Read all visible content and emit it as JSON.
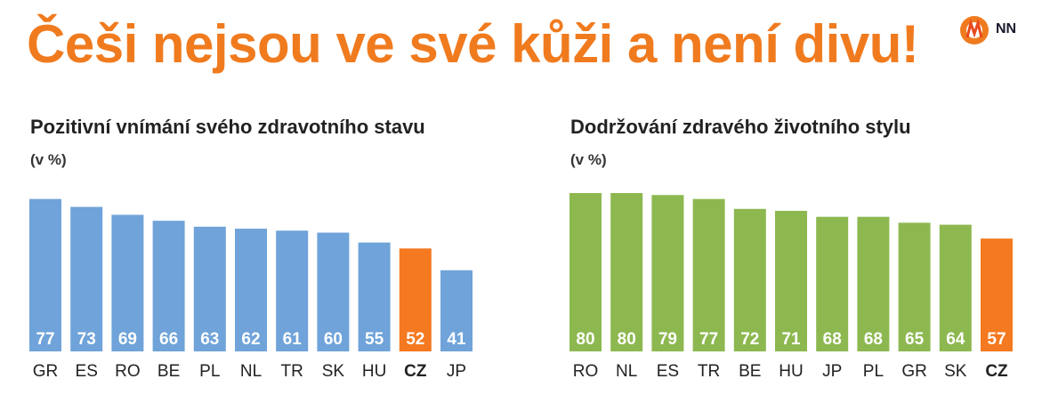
{
  "headline": "Češi nejsou ve své kůži a není divu!",
  "logo": {
    "text": "NN"
  },
  "colors": {
    "accent": "#f07b1f",
    "blue": "#6fa3d9",
    "green": "#8db850",
    "highlight": "#f47920"
  },
  "chart_data": [
    {
      "type": "bar",
      "title": "Pozitivní vnímání svého zdravotního stavu",
      "unit": "(v %)",
      "categories": [
        "GR",
        "ES",
        "RO",
        "BE",
        "PL",
        "NL",
        "TR",
        "SK",
        "HU",
        "CZ",
        "JP"
      ],
      "values": [
        77,
        73,
        69,
        66,
        63,
        62,
        61,
        60,
        55,
        52,
        41
      ],
      "highlight": "CZ",
      "ylim": [
        0,
        80
      ]
    },
    {
      "type": "bar",
      "title": "Dodržování zdravého životního stylu",
      "unit": "(v %)",
      "categories": [
        "RO",
        "NL",
        "ES",
        "TR",
        "BE",
        "HU",
        "JP",
        "PL",
        "GR",
        "SK",
        "CZ"
      ],
      "values": [
        80,
        80,
        79,
        77,
        72,
        71,
        68,
        68,
        65,
        64,
        57
      ],
      "highlight": "CZ",
      "ylim": [
        0,
        80
      ]
    }
  ]
}
